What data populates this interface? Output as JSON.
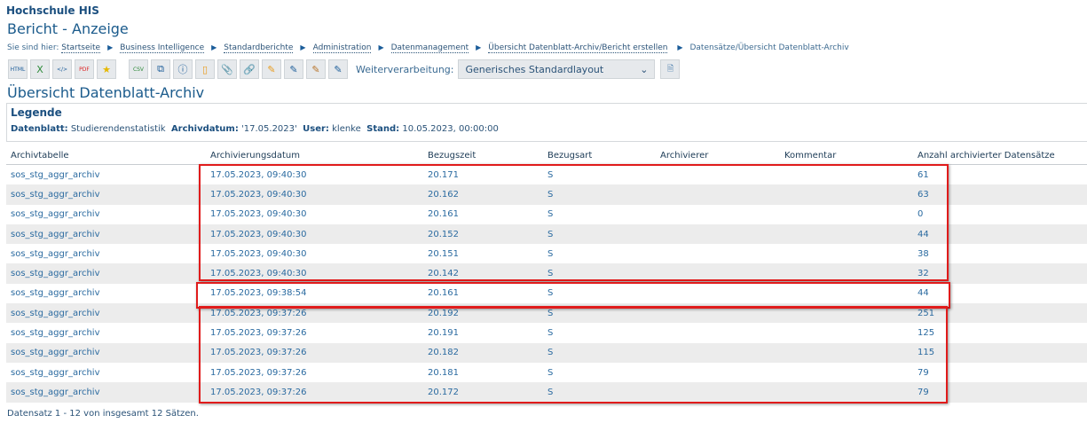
{
  "org": "Hochschule HIS",
  "title": "Bericht - Anzeige",
  "breadcrumb": {
    "prefix": "Sie sind hier:",
    "items": [
      "Startseite",
      "Business Intelligence",
      "Standardberichte",
      "Administration",
      "Datenmanagement",
      "Übersicht Datenblatt-Archiv/Bericht erstellen"
    ],
    "current": "Datensätze/Übersicht Datenblatt-Archiv"
  },
  "toolbar": {
    "icons": [
      "html-export-icon",
      "excel-export-icon",
      "xml-export-icon",
      "pdf-export-icon",
      "favorite-icon",
      "csv-export-icon",
      "copy-icon",
      "info-icon",
      "bookmark-icon",
      "attachment-icon",
      "link-icon",
      "edit-report-icon",
      "edit-layout-icon",
      "edit-folder-icon",
      "edit-export-icon"
    ],
    "weiter_label": "Weiterverarbeitung:",
    "weiter_value": "Generisches Standardlayout"
  },
  "heading": "Übersicht Datenblatt-Archiv",
  "legend": {
    "title": "Legende",
    "datenblatt_label": "Datenblatt:",
    "datenblatt": "Studierendenstatistik",
    "archivdatum_label": "Archivdatum:",
    "archivdatum": "'17.05.2023'",
    "user_label": "User:",
    "user": "klenke",
    "stand_label": "Stand:",
    "stand": "10.05.2023, 00:00:00"
  },
  "table": {
    "headers": [
      "Archivtabelle",
      "Archivierungsdatum",
      "Bezugszeit",
      "Bezugsart",
      "Archivierer",
      "Kommentar",
      "Anzahl archivierter Datensätze"
    ],
    "rows": [
      [
        "sos_stg_aggr_archiv",
        "17.05.2023, 09:40:30",
        "20.171",
        "S",
        "",
        "",
        "61"
      ],
      [
        "sos_stg_aggr_archiv",
        "17.05.2023, 09:40:30",
        "20.162",
        "S",
        "",
        "",
        "63"
      ],
      [
        "sos_stg_aggr_archiv",
        "17.05.2023, 09:40:30",
        "20.161",
        "S",
        "",
        "",
        "0"
      ],
      [
        "sos_stg_aggr_archiv",
        "17.05.2023, 09:40:30",
        "20.152",
        "S",
        "",
        "",
        "44"
      ],
      [
        "sos_stg_aggr_archiv",
        "17.05.2023, 09:40:30",
        "20.151",
        "S",
        "",
        "",
        "38"
      ],
      [
        "sos_stg_aggr_archiv",
        "17.05.2023, 09:40:30",
        "20.142",
        "S",
        "",
        "",
        "32"
      ],
      [
        "sos_stg_aggr_archiv",
        "17.05.2023, 09:38:54",
        "20.161",
        "S",
        "",
        "",
        "44"
      ],
      [
        "sos_stg_aggr_archiv",
        "17.05.2023, 09:37:26",
        "20.192",
        "S",
        "",
        "",
        "251"
      ],
      [
        "sos_stg_aggr_archiv",
        "17.05.2023, 09:37:26",
        "20.191",
        "S",
        "",
        "",
        "125"
      ],
      [
        "sos_stg_aggr_archiv",
        "17.05.2023, 09:37:26",
        "20.182",
        "S",
        "",
        "",
        "115"
      ],
      [
        "sos_stg_aggr_archiv",
        "17.05.2023, 09:37:26",
        "20.181",
        "S",
        "",
        "",
        "79"
      ],
      [
        "sos_stg_aggr_archiv",
        "17.05.2023, 09:37:26",
        "20.172",
        "S",
        "",
        "",
        "79"
      ]
    ]
  },
  "footer": "Datensatz 1 - 12 von insgesamt 12 Sätzen.",
  "colors": {
    "highlight": "#e01b1b",
    "link": "#2a6aa0"
  }
}
